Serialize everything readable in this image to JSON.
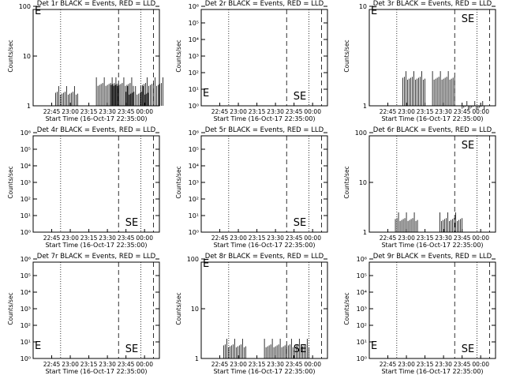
{
  "figure": {
    "background": "#ffffff",
    "ink": "#000000",
    "lld_color": "#ff0000"
  },
  "chart_data": [
    {
      "type": "line",
      "title": "Det 1r BLACK = Events, RED = LLD",
      "xlabel": "Start Time (16-Oct-17 22:35:00)",
      "ylabel": "Counts/sec",
      "x_ticks": [
        "22:45",
        "23:00",
        "23:15",
        "23:30",
        "23:45",
        "00:00"
      ],
      "y_scale": "log",
      "ylim": [
        1,
        100
      ],
      "y_ticks": [
        {
          "v": 1,
          "label": "1"
        },
        {
          "v": 10,
          "label": "10"
        },
        {
          "v": 100,
          "label": "100"
        }
      ],
      "markers": {
        "E": true,
        "SE": false
      },
      "values": [
        [
          22.95,
          2
        ],
        [
          23.5,
          3
        ],
        [
          23.7,
          3
        ],
        [
          23.9,
          2
        ],
        [
          24.1,
          3
        ]
      ]
    },
    {
      "type": "line",
      "title": "Det 2r BLACK = Events, RED = LLD",
      "xlabel": "Start Time (16-Oct-17 22:35:00)",
      "ylabel": "Counts/sec",
      "x_ticks": [
        "22:45",
        "23:00",
        "23:15",
        "23:30",
        "23:45",
        "00:00"
      ],
      "y_scale": "log",
      "ylim": [
        1,
        1000000
      ],
      "y_ticks": [
        {
          "v": 1,
          "label": "10⁰"
        },
        {
          "v": 10,
          "label": "10¹"
        },
        {
          "v": 100,
          "label": "10²"
        },
        {
          "v": 1000,
          "label": "10³"
        },
        {
          "v": 10000,
          "label": "10⁴"
        },
        {
          "v": 100000,
          "label": "10⁵"
        },
        {
          "v": 1000000,
          "label": "10⁶"
        }
      ],
      "markers": {
        "E": true,
        "SE": true
      },
      "values": []
    },
    {
      "type": "line",
      "title": "Det 3r BLACK = Events, RED = LLD",
      "xlabel": "Start Time (16-Oct-17 22:35:00)",
      "ylabel": "Counts/sec",
      "x_ticks": [
        "22:45",
        "23:00",
        "23:15",
        "23:30",
        "23:45",
        "00:00"
      ],
      "y_scale": "log",
      "ylim": [
        1,
        10
      ],
      "y_ticks": [
        {
          "v": 1,
          "label": "1"
        },
        {
          "v": 10,
          "label": "10"
        }
      ],
      "markers": {
        "E": true,
        "SE": true
      },
      "values": [
        [
          23.1,
          2
        ],
        [
          23.5,
          2
        ],
        [
          23.9,
          1
        ]
      ]
    },
    {
      "type": "line",
      "title": "Det 4r BLACK = Events, RED = LLD",
      "xlabel": "Start Time (16-Oct-17 22:35:00)",
      "ylabel": "Counts/sec",
      "x_ticks": [
        "22:45",
        "23:00",
        "23:15",
        "23:30",
        "23:45",
        "00:00"
      ],
      "y_scale": "log",
      "ylim": [
        1,
        1000000
      ],
      "y_ticks": [
        {
          "v": 1,
          "label": "10⁰"
        },
        {
          "v": 10,
          "label": "10¹"
        },
        {
          "v": 100,
          "label": "10²"
        },
        {
          "v": 1000,
          "label": "10³"
        },
        {
          "v": 10000,
          "label": "10⁴"
        },
        {
          "v": 100000,
          "label": "10⁵"
        },
        {
          "v": 1000000,
          "label": "10⁶"
        }
      ],
      "markers": {
        "E": false,
        "SE": true
      },
      "values": []
    },
    {
      "type": "line",
      "title": "Det 5r BLACK = Events, RED = LLD",
      "xlabel": "Start Time (16-Oct-17 22:35:00)",
      "ylabel": "Counts/sec",
      "x_ticks": [
        "22:45",
        "23:00",
        "23:15",
        "23:30",
        "23:45",
        "00:00"
      ],
      "y_scale": "log",
      "ylim": [
        1,
        1000000
      ],
      "y_ticks": [
        {
          "v": 1,
          "label": "10⁰"
        },
        {
          "v": 10,
          "label": "10¹"
        },
        {
          "v": 100,
          "label": "10²"
        },
        {
          "v": 1000,
          "label": "10³"
        },
        {
          "v": 10000,
          "label": "10⁴"
        },
        {
          "v": 100000,
          "label": "10⁵"
        },
        {
          "v": 1000000,
          "label": "10⁶"
        }
      ],
      "markers": {
        "E": false,
        "SE": true
      },
      "values": []
    },
    {
      "type": "line",
      "title": "Det 6r BLACK = Events, RED = LLD",
      "xlabel": "Start Time (16-Oct-17 22:35:00)",
      "ylabel": "Counts/sec",
      "x_ticks": [
        "22:45",
        "23:00",
        "23:15",
        "23:30",
        "23:45",
        "00:00"
      ],
      "y_scale": "log",
      "ylim": [
        1,
        100
      ],
      "y_ticks": [
        {
          "v": 1,
          "label": "1"
        },
        {
          "v": 10,
          "label": "10"
        },
        {
          "v": 100,
          "label": "100"
        }
      ],
      "markers": {
        "E": false,
        "SE": true
      },
      "values": [
        [
          23.0,
          2
        ],
        [
          23.6,
          2
        ]
      ]
    },
    {
      "type": "line",
      "title": "Det 7r BLACK = Events, RED = LLD",
      "xlabel": "Start Time (16-Oct-17 22:35:00)",
      "ylabel": "Counts/sec",
      "x_ticks": [
        "22:45",
        "23:00",
        "23:15",
        "23:30",
        "23:45",
        "00:00"
      ],
      "y_scale": "log",
      "ylim": [
        1,
        1000000
      ],
      "y_ticks": [
        {
          "v": 1,
          "label": "10⁰"
        },
        {
          "v": 10,
          "label": "10¹"
        },
        {
          "v": 100,
          "label": "10²"
        },
        {
          "v": 1000,
          "label": "10³"
        },
        {
          "v": 10000,
          "label": "10⁴"
        },
        {
          "v": 100000,
          "label": "10⁵"
        },
        {
          "v": 1000000,
          "label": "10⁶"
        }
      ],
      "markers": {
        "E": true,
        "SE": true
      },
      "values": []
    },
    {
      "type": "line",
      "title": "Det 8r BLACK = Events, RED = LLD",
      "xlabel": "Start Time (16-Oct-17 22:35:00)",
      "ylabel": "Counts/sec",
      "x_ticks": [
        "22:45",
        "23:00",
        "23:15",
        "23:30",
        "23:45",
        "00:00"
      ],
      "y_scale": "log",
      "ylim": [
        1,
        100
      ],
      "y_ticks": [
        {
          "v": 1,
          "label": "1"
        },
        {
          "v": 10,
          "label": "10"
        },
        {
          "v": 100,
          "label": "100"
        }
      ],
      "markers": {
        "E": true,
        "SE": true
      },
      "values": [
        [
          22.95,
          2
        ],
        [
          23.5,
          2
        ],
        [
          23.8,
          2
        ]
      ]
    },
    {
      "type": "line",
      "title": "Det 9r BLACK = Events, RED = LLD",
      "xlabel": "Start Time (16-Oct-17 22:35:00)",
      "ylabel": "Counts/sec",
      "x_ticks": [
        "22:45",
        "23:00",
        "23:15",
        "23:30",
        "23:45",
        "00:00"
      ],
      "y_scale": "log",
      "ylim": [
        1,
        1000000
      ],
      "y_ticks": [
        {
          "v": 1,
          "label": "10⁰"
        },
        {
          "v": 10,
          "label": "10¹"
        },
        {
          "v": 100,
          "label": "10²"
        },
        {
          "v": 1000,
          "label": "10³"
        },
        {
          "v": 10000,
          "label": "10⁴"
        },
        {
          "v": 100000,
          "label": "10⁵"
        },
        {
          "v": 1000000,
          "label": "10⁶"
        }
      ],
      "markers": {
        "E": true,
        "SE": true
      },
      "values": []
    }
  ]
}
